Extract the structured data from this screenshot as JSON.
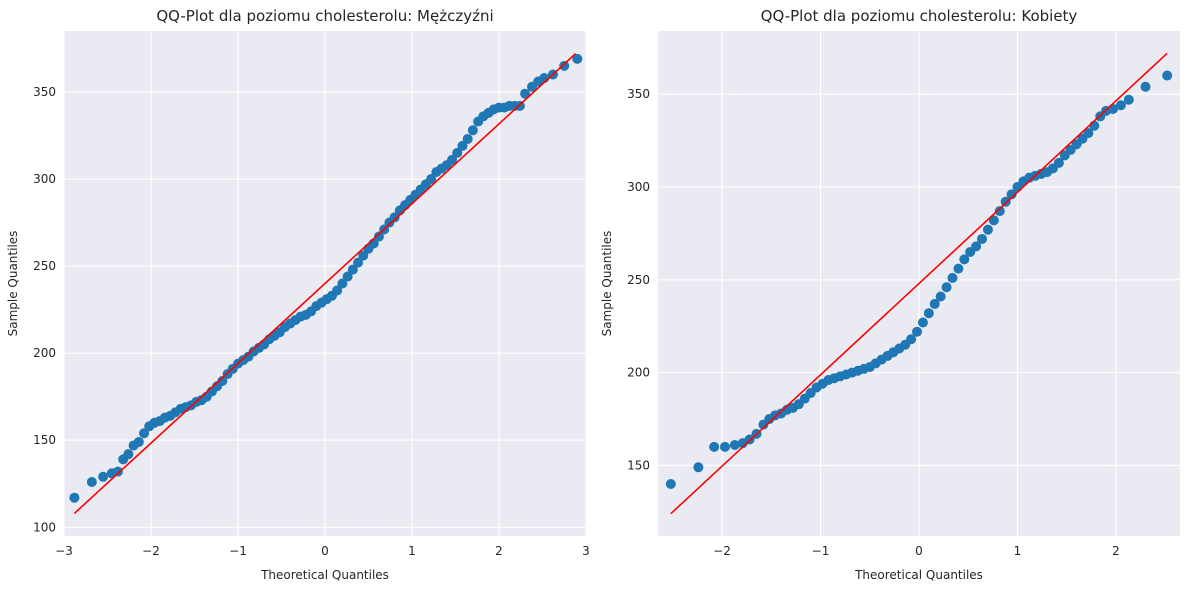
{
  "chart_data": [
    {
      "type": "scatter",
      "title": "QQ-Plot dla poziomu cholesterolu: Mężczyźni",
      "xlabel": "Theoretical Quantiles",
      "ylabel": "Sample Quantiles",
      "xlim": [
        -3,
        3
      ],
      "ylim": [
        95,
        385
      ],
      "xticks": [
        -3,
        -2,
        -1,
        0,
        1,
        2,
        3
      ],
      "yticks": [
        100,
        150,
        200,
        250,
        300,
        350
      ],
      "grid": true,
      "colors": {
        "points": "#1f77b4",
        "line": "#ff0000",
        "background": "#eaeaf2"
      },
      "reference_line": {
        "x": [
          -2.88,
          2.88
        ],
        "y": [
          108,
          372
        ]
      },
      "series": [
        {
          "points": [
            [
              -2.88,
              117
            ],
            [
              -2.68,
              126
            ],
            [
              -2.55,
              129
            ],
            [
              -2.45,
              131
            ],
            [
              -2.38,
              132
            ],
            [
              -2.32,
              139
            ],
            [
              -2.26,
              142
            ],
            [
              -2.2,
              147
            ],
            [
              -2.14,
              149
            ],
            [
              -2.08,
              154
            ],
            [
              -2.02,
              158
            ],
            [
              -1.96,
              160
            ],
            [
              -1.9,
              161
            ],
            [
              -1.84,
              163
            ],
            [
              -1.78,
              164
            ],
            [
              -1.72,
              166
            ],
            [
              -1.66,
              168
            ],
            [
              -1.6,
              169
            ],
            [
              -1.54,
              170
            ],
            [
              -1.48,
              172
            ],
            [
              -1.42,
              173
            ],
            [
              -1.36,
              175
            ],
            [
              -1.3,
              178
            ],
            [
              -1.24,
              181
            ],
            [
              -1.18,
              184
            ],
            [
              -1.12,
              188
            ],
            [
              -1.06,
              191
            ],
            [
              -1.0,
              194
            ],
            [
              -0.94,
              196
            ],
            [
              -0.88,
              198
            ],
            [
              -0.82,
              201
            ],
            [
              -0.76,
              203
            ],
            [
              -0.7,
              205
            ],
            [
              -0.64,
              208
            ],
            [
              -0.58,
              210
            ],
            [
              -0.52,
              212
            ],
            [
              -0.46,
              215
            ],
            [
              -0.4,
              217
            ],
            [
              -0.34,
              219
            ],
            [
              -0.28,
              221
            ],
            [
              -0.22,
              222
            ],
            [
              -0.16,
              224
            ],
            [
              -0.1,
              227
            ],
            [
              -0.04,
              229
            ],
            [
              0.02,
              231
            ],
            [
              0.08,
              233
            ],
            [
              0.14,
              236
            ],
            [
              0.2,
              240
            ],
            [
              0.26,
              244
            ],
            [
              0.32,
              248
            ],
            [
              0.38,
              252
            ],
            [
              0.44,
              256
            ],
            [
              0.5,
              260
            ],
            [
              0.56,
              263
            ],
            [
              0.62,
              267
            ],
            [
              0.68,
              271
            ],
            [
              0.74,
              275
            ],
            [
              0.8,
              278
            ],
            [
              0.86,
              282
            ],
            [
              0.92,
              285
            ],
            [
              0.98,
              288
            ],
            [
              1.04,
              291
            ],
            [
              1.1,
              294
            ],
            [
              1.16,
              297
            ],
            [
              1.22,
              300
            ],
            [
              1.28,
              304
            ],
            [
              1.34,
              306
            ],
            [
              1.4,
              308
            ],
            [
              1.46,
              311
            ],
            [
              1.52,
              315
            ],
            [
              1.58,
              319
            ],
            [
              1.64,
              323
            ],
            [
              1.7,
              328
            ],
            [
              1.76,
              333
            ],
            [
              1.82,
              336
            ],
            [
              1.88,
              338
            ],
            [
              1.94,
              340
            ],
            [
              2.0,
              341
            ],
            [
              2.06,
              341
            ],
            [
              2.12,
              342
            ],
            [
              2.18,
              342
            ],
            [
              2.24,
              342
            ],
            [
              2.3,
              349
            ],
            [
              2.38,
              353
            ],
            [
              2.45,
              356
            ],
            [
              2.52,
              358
            ],
            [
              2.62,
              360
            ],
            [
              2.75,
              365
            ],
            [
              2.9,
              369
            ]
          ]
        }
      ]
    },
    {
      "type": "scatter",
      "title": "QQ-Plot dla poziomu cholesterolu: Kobiety",
      "xlabel": "Theoretical Quantiles",
      "ylabel": "Sample Quantiles",
      "xlim": [
        -2.65,
        2.65
      ],
      "ylim": [
        112,
        384
      ],
      "xticks": [
        -2,
        -1,
        0,
        1,
        2
      ],
      "yticks": [
        150,
        200,
        250,
        300,
        350
      ],
      "grid": true,
      "colors": {
        "points": "#1f77b4",
        "line": "#ff0000",
        "background": "#eaeaf2"
      },
      "reference_line": {
        "x": [
          -2.52,
          2.52
        ],
        "y": [
          124,
          372
        ]
      },
      "series": [
        {
          "points": [
            [
              -2.52,
              140
            ],
            [
              -2.24,
              149
            ],
            [
              -2.08,
              160
            ],
            [
              -1.97,
              160
            ],
            [
              -1.87,
              161
            ],
            [
              -1.79,
              162
            ],
            [
              -1.72,
              164
            ],
            [
              -1.65,
              167
            ],
            [
              -1.58,
              172
            ],
            [
              -1.52,
              175
            ],
            [
              -1.46,
              177
            ],
            [
              -1.4,
              178
            ],
            [
              -1.34,
              180
            ],
            [
              -1.28,
              181
            ],
            [
              -1.22,
              183
            ],
            [
              -1.16,
              186
            ],
            [
              -1.1,
              189
            ],
            [
              -1.04,
              192
            ],
            [
              -0.98,
              194
            ],
            [
              -0.92,
              196
            ],
            [
              -0.86,
              197
            ],
            [
              -0.8,
              198
            ],
            [
              -0.74,
              199
            ],
            [
              -0.68,
              200
            ],
            [
              -0.62,
              201
            ],
            [
              -0.56,
              202
            ],
            [
              -0.5,
              203
            ],
            [
              -0.44,
              205
            ],
            [
              -0.38,
              207
            ],
            [
              -0.32,
              209
            ],
            [
              -0.26,
              211
            ],
            [
              -0.2,
              213
            ],
            [
              -0.14,
              215
            ],
            [
              -0.08,
              218
            ],
            [
              -0.02,
              222
            ],
            [
              0.04,
              227
            ],
            [
              0.1,
              232
            ],
            [
              0.16,
              237
            ],
            [
              0.22,
              241
            ],
            [
              0.28,
              246
            ],
            [
              0.34,
              251
            ],
            [
              0.4,
              256
            ],
            [
              0.46,
              261
            ],
            [
              0.52,
              265
            ],
            [
              0.58,
              268
            ],
            [
              0.64,
              272
            ],
            [
              0.7,
              277
            ],
            [
              0.76,
              282
            ],
            [
              0.82,
              287
            ],
            [
              0.88,
              292
            ],
            [
              0.94,
              296
            ],
            [
              1.0,
              300
            ],
            [
              1.06,
              303
            ],
            [
              1.12,
              305
            ],
            [
              1.18,
              306
            ],
            [
              1.24,
              307
            ],
            [
              1.3,
              308
            ],
            [
              1.36,
              310
            ],
            [
              1.42,
              313
            ],
            [
              1.48,
              317
            ],
            [
              1.54,
              320
            ],
            [
              1.6,
              323
            ],
            [
              1.66,
              326
            ],
            [
              1.72,
              329
            ],
            [
              1.78,
              333
            ],
            [
              1.84,
              338
            ],
            [
              1.9,
              341
            ],
            [
              1.97,
              342
            ],
            [
              2.05,
              344
            ],
            [
              2.13,
              347
            ],
            [
              2.3,
              354
            ],
            [
              2.52,
              360
            ]
          ]
        }
      ]
    }
  ]
}
